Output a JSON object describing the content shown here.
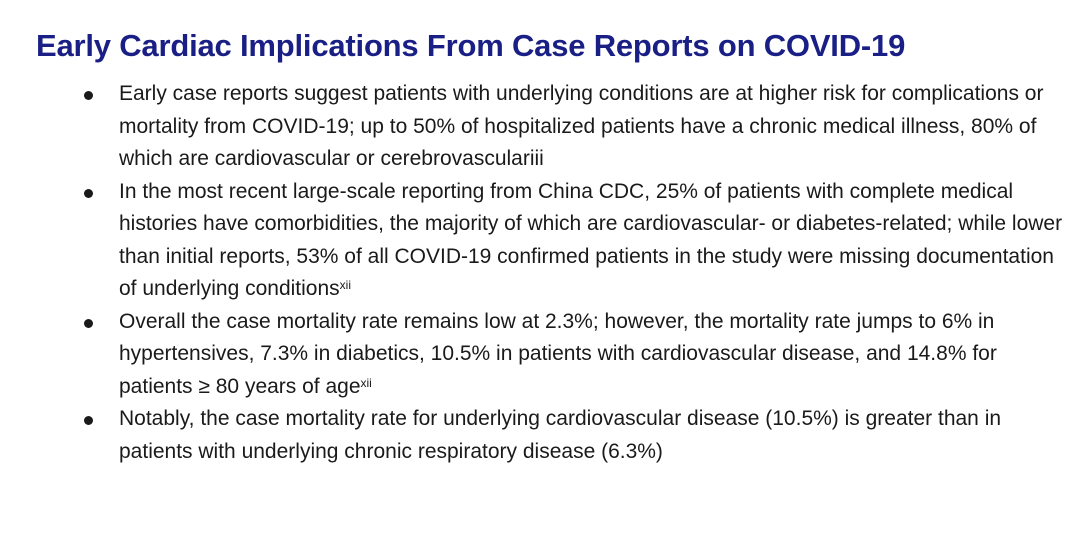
{
  "title": "Early Cardiac Implications From Case Reports on COVID-19",
  "bullets": [
    {
      "text": "Early case reports suggest patients with underlying conditions are at higher risk for complications or mortality from COVID-19; up to 50% of hospitalized patients have a chronic medical illness, 80% of which are cardiovascular or cerebrovasculariii",
      "ref": ""
    },
    {
      "text": "In the most recent large-scale reporting from China CDC, 25% of patients with complete medical histories have comorbidities, the majority of which are cardiovascular- or diabetes-related; while lower than initial reports, 53% of all COVID-19 confirmed patients in the study were missing documentation of underlying conditions",
      "ref": "xii"
    },
    {
      "text": "Overall the case mortality rate remains low at 2.3%; however, the mortality rate jumps to 6% in hypertensives, 7.3% in diabetics, 10.5% in patients with cardiovascular disease, and 14.8% for patients ≥ 80 years of age",
      "ref": "xii"
    },
    {
      "text": "Notably, the case mortality rate for underlying cardiovascular disease (10.5%) is greater than in patients with underlying chronic respiratory disease (6.3%)",
      "ref": ""
    }
  ]
}
